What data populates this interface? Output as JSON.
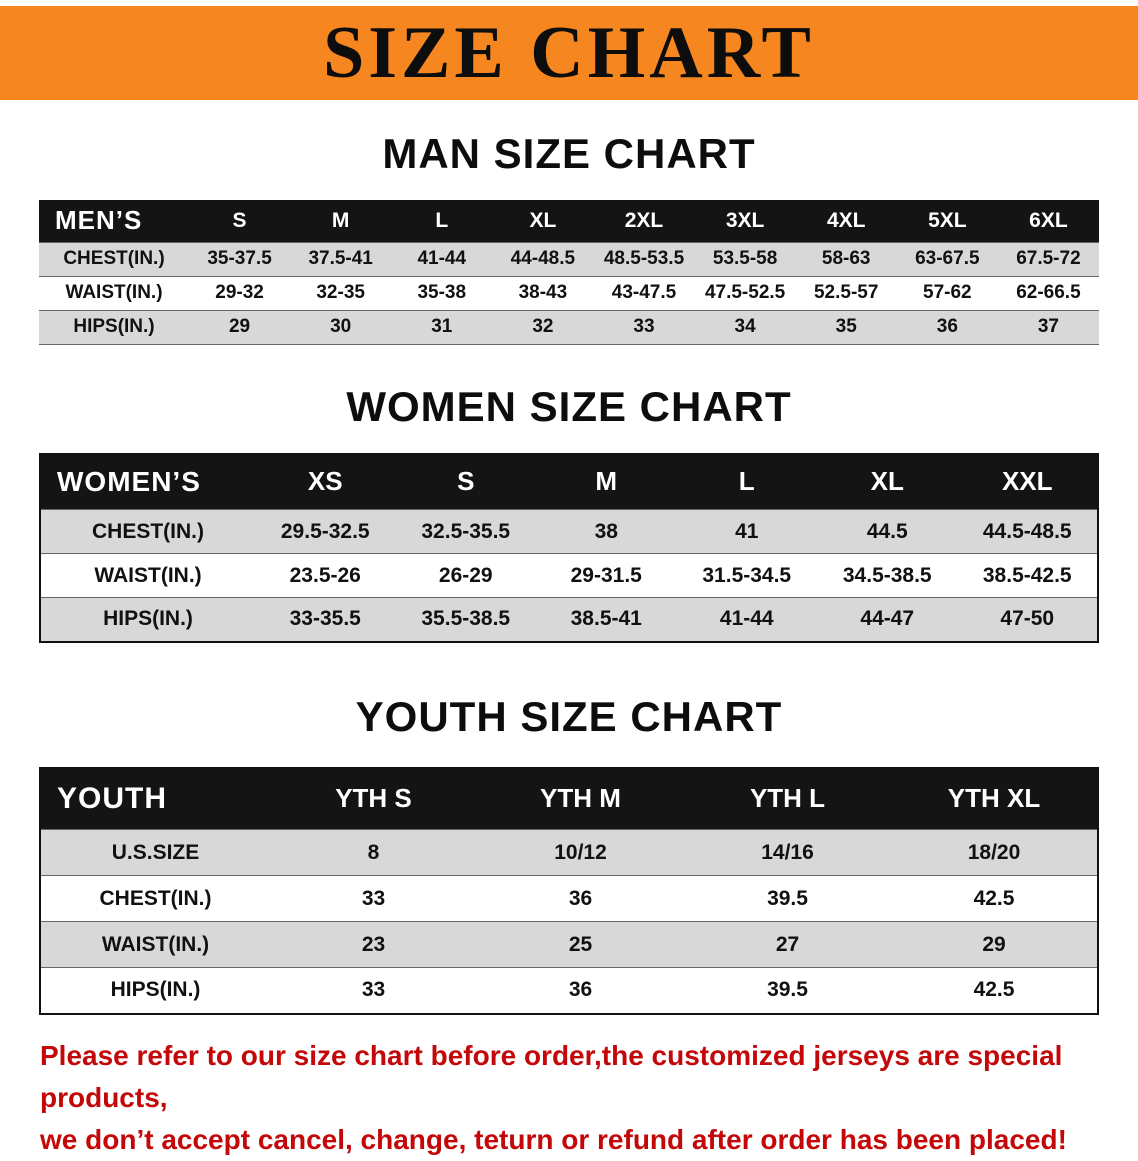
{
  "banner": {
    "title": "SIZE CHART"
  },
  "colors": {
    "banner_orange": "#f6861f",
    "table_header_black": "#141414",
    "row_gray": "#d8d8d8",
    "disclaimer_red": "#c40708"
  },
  "chart_data": [
    {
      "type": "table",
      "title": "MAN SIZE CHART",
      "header": [
        "MEN’S",
        "S",
        "M",
        "L",
        "XL",
        "2XL",
        "3XL",
        "4XL",
        "5XL",
        "6XL"
      ],
      "rows": [
        [
          "CHEST(IN.)",
          "35-37.5",
          "37.5-41",
          "41-44",
          "44-48.5",
          "48.5-53.5",
          "53.5-58",
          "58-63",
          "63-67.5",
          "67.5-72"
        ],
        [
          "WAIST(IN.)",
          "29-32",
          "32-35",
          "35-38",
          "38-43",
          "43-47.5",
          "47.5-52.5",
          "52.5-57",
          "57-62",
          "62-66.5"
        ],
        [
          "HIPS(IN.)",
          "29",
          "30",
          "31",
          "32",
          "33",
          "34",
          "35",
          "36",
          "37"
        ]
      ]
    },
    {
      "type": "table",
      "title": "WOMEN SIZE CHART",
      "header": [
        "WOMEN’S",
        "XS",
        "S",
        "M",
        "L",
        "XL",
        "XXL"
      ],
      "rows": [
        [
          "CHEST(IN.)",
          "29.5-32.5",
          "32.5-35.5",
          "38",
          "41",
          "44.5",
          "44.5-48.5"
        ],
        [
          "WAIST(IN.)",
          "23.5-26",
          "26-29",
          "29-31.5",
          "31.5-34.5",
          "34.5-38.5",
          "38.5-42.5"
        ],
        [
          "HIPS(IN.)",
          "33-35.5",
          "35.5-38.5",
          "38.5-41",
          "41-44",
          "44-47",
          "47-50"
        ]
      ]
    },
    {
      "type": "table",
      "title": "YOUTH SIZE CHART",
      "header": [
        "YOUTH",
        "YTH S",
        "YTH M",
        "YTH L",
        "YTH XL"
      ],
      "rows": [
        [
          "U.S.SIZE",
          "8",
          "10/12",
          "14/16",
          "18/20"
        ],
        [
          "CHEST(IN.)",
          "33",
          "36",
          "39.5",
          "42.5"
        ],
        [
          "WAIST(IN.)",
          "23",
          "25",
          "27",
          "29"
        ],
        [
          "HIPS(IN.)",
          "33",
          "36",
          "39.5",
          "42.5"
        ]
      ]
    }
  ],
  "disclaimer": {
    "line1": "Please refer to our size chart before order,the customized jerseys are special products,",
    "line2": "we don’t accept cancel, change, teturn or refund after order has been placed!"
  }
}
